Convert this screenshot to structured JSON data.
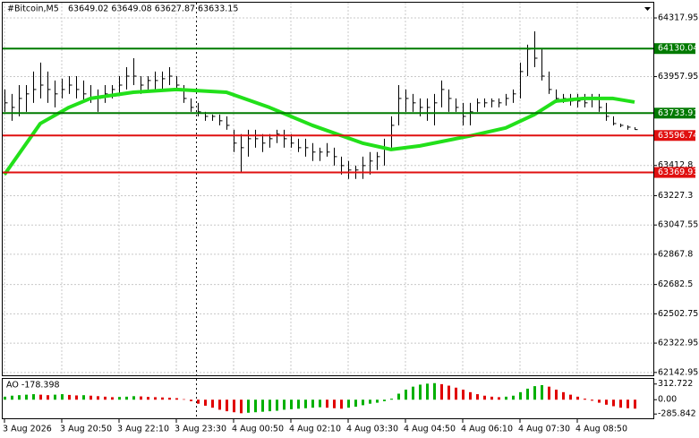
{
  "chart_data": {
    "type": "ohlc",
    "title": "#Bitcoin,M5",
    "quote": "63649.02 63649.08 63627.87 63633.15",
    "categories": [
      "3 Aug 2026",
      null,
      null,
      null,
      null,
      null,
      null,
      null,
      "3 Aug 20:50",
      null,
      null,
      null,
      null,
      null,
      null,
      null,
      "3 Aug 22:10",
      null,
      null,
      null,
      null,
      null,
      null,
      null,
      "3 Aug 23:30",
      null,
      null,
      null,
      null,
      null,
      null,
      null,
      "4 Aug 00:50",
      null,
      null,
      null,
      null,
      null,
      null,
      null,
      "4 Aug 02:10",
      null,
      null,
      null,
      null,
      null,
      null,
      null,
      "4 Aug 03:30",
      null,
      null,
      null,
      null,
      null,
      null,
      null,
      "4 Aug 04:50",
      null,
      null,
      null,
      null,
      null,
      null,
      null,
      "4 Aug 06:10",
      null,
      null,
      null,
      null,
      null,
      null,
      null,
      "4 Aug 07:30",
      null,
      null,
      null,
      null,
      null,
      null,
      null,
      "4 Aug 08:50",
      null,
      null,
      null,
      null,
      null,
      null,
      null,
      null
    ],
    "high": [
      63879,
      63852,
      63906,
      63906,
      63989,
      64044,
      63989,
      63934,
      63945,
      63961,
      63961,
      63934,
      63906,
      63879,
      63906,
      63906,
      63961,
      64016,
      64071,
      63961,
      63961,
      63989,
      63989,
      64016,
      63961,
      63906,
      63824,
      63797,
      63742,
      63725,
      63725,
      63714,
      63632,
      63605,
      63632,
      63632,
      63605,
      63605,
      63632,
      63632,
      63605,
      63577,
      63577,
      63550,
      63522,
      63550,
      63522,
      63467,
      63440,
      63412,
      63467,
      63495,
      63495,
      63577,
      63714,
      63906,
      63879,
      63852,
      63824,
      63824,
      63852,
      63934,
      63879,
      63824,
      63797,
      63797,
      63824,
      63824,
      63824,
      63824,
      63852,
      63879,
      64044,
      64154,
      64236,
      64126,
      63989,
      63879,
      63852,
      63852,
      63852,
      63852,
      63852,
      63852,
      63797,
      63714,
      63670,
      63659,
      63648
    ],
    "low": [
      63742,
      63687,
      63714,
      63742,
      63797,
      63824,
      63797,
      63769,
      63824,
      63852,
      63824,
      63797,
      63797,
      63742,
      63797,
      63824,
      63852,
      63879,
      63906,
      63852,
      63879,
      63879,
      63879,
      63906,
      63879,
      63797,
      63742,
      63714,
      63687,
      63687,
      63659,
      63632,
      63495,
      63374,
      63467,
      63522,
      63495,
      63522,
      63550,
      63522,
      63522,
      63495,
      63467,
      63440,
      63440,
      63467,
      63412,
      63357,
      63330,
      63330,
      63330,
      63357,
      63385,
      63412,
      63522,
      63659,
      63742,
      63742,
      63714,
      63687,
      63659,
      63769,
      63742,
      63742,
      63659,
      63659,
      63742,
      63769,
      63769,
      63769,
      63780,
      63797,
      63824,
      63961,
      64016,
      63934,
      63852,
      63797,
      63797,
      63780,
      63769,
      63769,
      63769,
      63742,
      63687,
      63659,
      63648,
      63632,
      63632
    ],
    "close": [
      63797,
      63769,
      63824,
      63852,
      63879,
      63906,
      63879,
      63852,
      63879,
      63906,
      63879,
      63852,
      63824,
      63824,
      63852,
      63879,
      63906,
      63961,
      63961,
      63906,
      63934,
      63934,
      63945,
      63961,
      63906,
      63824,
      63769,
      63742,
      63714,
      63714,
      63687,
      63659,
      63550,
      63522,
      63577,
      63577,
      63550,
      63577,
      63605,
      63577,
      63550,
      63522,
      63522,
      63495,
      63495,
      63495,
      63467,
      63412,
      63385,
      63385,
      63412,
      63440,
      63467,
      63522,
      63659,
      63824,
      63824,
      63797,
      63769,
      63769,
      63797,
      63879,
      63824,
      63769,
      63714,
      63742,
      63797,
      63797,
      63808,
      63797,
      63824,
      63852,
      63989,
      64126,
      64071,
      63961,
      63879,
      63824,
      63824,
      63808,
      63808,
      63797,
      63824,
      63769,
      63714,
      63670,
      63659,
      63648,
      63633.15
    ],
    "color": "#000000",
    "ylim": [
      62120,
      64428
    ],
    "yticks": [
      64317.95,
      63957.95,
      63412.8,
      63227.3,
      63047.55,
      62867.8,
      62682.5,
      62502.75,
      62322.95,
      62142.95
    ],
    "grid": true,
    "ma": {
      "x": [
        0,
        5,
        9,
        12,
        18,
        24,
        31,
        37,
        43,
        50,
        54,
        58,
        65,
        70,
        74,
        77,
        81,
        85,
        88
      ],
      "values": [
        63357,
        63670,
        63769,
        63824,
        63862,
        63879,
        63862,
        63769,
        63659,
        63550,
        63511,
        63533,
        63594,
        63643,
        63725,
        63808,
        63824,
        63824,
        63802
      ],
      "color": "#22e01a"
    },
    "levels": [
      {
        "value": 64130.04,
        "color": "#007a00"
      },
      {
        "value": 63733.91,
        "color": "#007a00"
      },
      {
        "value": 63596.74,
        "color": "#e01010"
      },
      {
        "value": 63369.93,
        "color": "#e01010"
      }
    ],
    "indicator": {
      "title": "AO -178.398",
      "values": [
        60,
        80,
        90,
        100,
        110,
        100,
        90,
        100,
        110,
        95,
        85,
        90,
        80,
        70,
        60,
        50,
        55,
        60,
        70,
        65,
        55,
        50,
        45,
        40,
        30,
        10,
        -30,
        -80,
        -120,
        -160,
        -200,
        -230,
        -250,
        -270,
        -260,
        -250,
        -240,
        -230,
        -220,
        -200,
        -190,
        -180,
        -170,
        -160,
        -150,
        -160,
        -170,
        -180,
        -160,
        -140,
        -110,
        -80,
        -60,
        -30,
        20,
        120,
        200,
        260,
        300,
        320,
        330,
        310,
        280,
        240,
        200,
        150,
        110,
        80,
        60,
        50,
        60,
        80,
        150,
        220,
        270,
        290,
        260,
        200,
        150,
        100,
        60,
        20,
        -20,
        -60,
        -100,
        -130,
        -160,
        -170,
        -178.398
      ],
      "ylim": [
        -371,
        415
      ],
      "yticks": [
        312.722,
        {
          "value": 0,
          "label": "0.00"
        },
        -285.842
      ],
      "up_color": "#00b000",
      "down_color": "#e00000"
    }
  }
}
